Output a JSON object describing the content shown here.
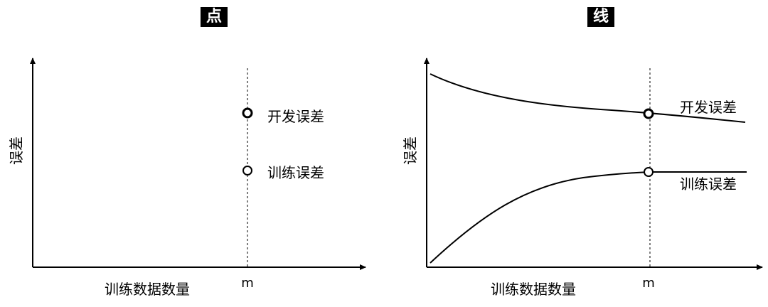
{
  "panels": [
    {
      "title": "点",
      "ylabel": "误差",
      "xlabel": "训练数据数量",
      "marker_label": "m",
      "points": [
        {
          "label": "开发误差"
        },
        {
          "label": "训练误差"
        }
      ]
    },
    {
      "title": "线",
      "ylabel": "误差",
      "xlabel": "训练数据数量",
      "marker_label": "m",
      "curves": [
        {
          "label": "开发误差"
        },
        {
          "label": "训练误差"
        }
      ]
    }
  ],
  "colors": {
    "line": "#000000",
    "background": "#ffffff"
  }
}
